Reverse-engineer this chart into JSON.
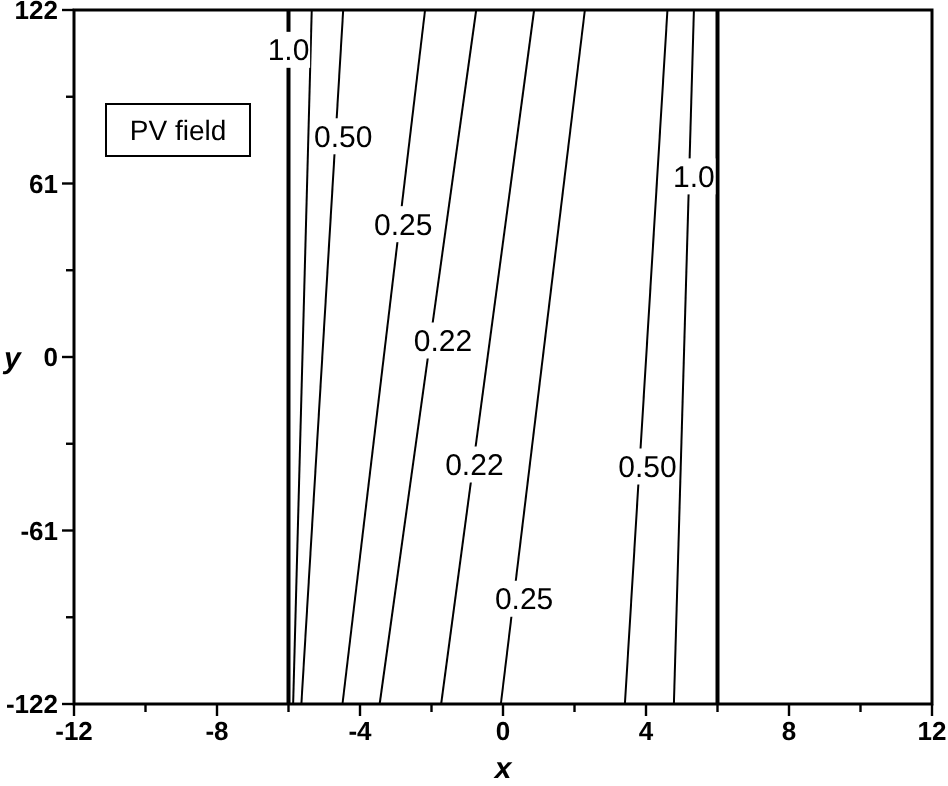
{
  "chart_data": {
    "type": "line",
    "xlabel": "x",
    "ylabel": "y",
    "xlim": [
      -12,
      12
    ],
    "xticks": [
      -12,
      {
        "value": -10,
        "label": null
      },
      -8,
      {
        "value": -6,
        "label": null
      },
      -4,
      {
        "value": -2,
        "label": null
      },
      0,
      {
        "value": 2,
        "label": null
      },
      4,
      {
        "value": 6,
        "label": null
      },
      8,
      {
        "value": 10,
        "label": null
      },
      12
    ],
    "ylim": [
      -122,
      122
    ],
    "yticks": [
      -122,
      {
        "value": -91.5,
        "label": null
      },
      -61,
      {
        "value": -30.5,
        "label": null
      },
      0,
      {
        "value": 30.5,
        "label": null
      },
      61,
      {
        "value": 91.5,
        "label": null
      },
      122
    ],
    "grid": false,
    "marker": "none",
    "line_style": "solid",
    "series": [
      {
        "color": "#000000",
        "x": [
          -5.87,
          -5.35
        ],
        "values": [
          -122,
          122
        ]
      },
      {
        "color": "#000000",
        "x": [
          -5.64,
          -4.47
        ],
        "values": [
          -122,
          122
        ]
      },
      {
        "color": "#000000",
        "x": [
          -4.49,
          -2.18
        ],
        "values": [
          -122,
          122
        ]
      },
      {
        "color": "#000000",
        "x": [
          -3.45,
          -0.75
        ],
        "values": [
          -122,
          122
        ]
      },
      {
        "color": "#000000",
        "x": [
          -1.73,
          0.87
        ],
        "values": [
          -122,
          122
        ]
      },
      {
        "color": "#000000",
        "x": [
          -0.06,
          2.29
        ],
        "values": [
          -122,
          122
        ]
      },
      {
        "color": "#000000",
        "x": [
          3.41,
          4.6
        ],
        "values": [
          -122,
          122
        ]
      },
      {
        "color": "#000000",
        "x": [
          4.78,
          5.34
        ],
        "values": [
          -122,
          122
        ]
      }
    ],
    "ref_lines": [
      {
        "axis": "x",
        "value": -6,
        "color": "#000000"
      },
      {
        "axis": "x",
        "value": 6,
        "color": "#000000"
      }
    ],
    "annotations": [
      "PV field",
      {
        "text": "1.0",
        "x": -6.0,
        "y": 108
      },
      {
        "text": "0.50",
        "x": -4.47,
        "y": 77.6
      },
      {
        "text": "0.25",
        "x": -2.79,
        "y": 46.7
      },
      {
        "text": "0.22",
        "x": -1.68,
        "y": 5.8
      },
      {
        "text": "0.22",
        "x": -0.8,
        "y": -37.8
      },
      {
        "text": "0.25",
        "x": 0.59,
        "y": -85
      },
      {
        "text": "0.50",
        "x": 4.04,
        "y": -38.5
      },
      {
        "text": "1.0",
        "x": 5.34,
        "y": 63.5
      }
    ]
  }
}
